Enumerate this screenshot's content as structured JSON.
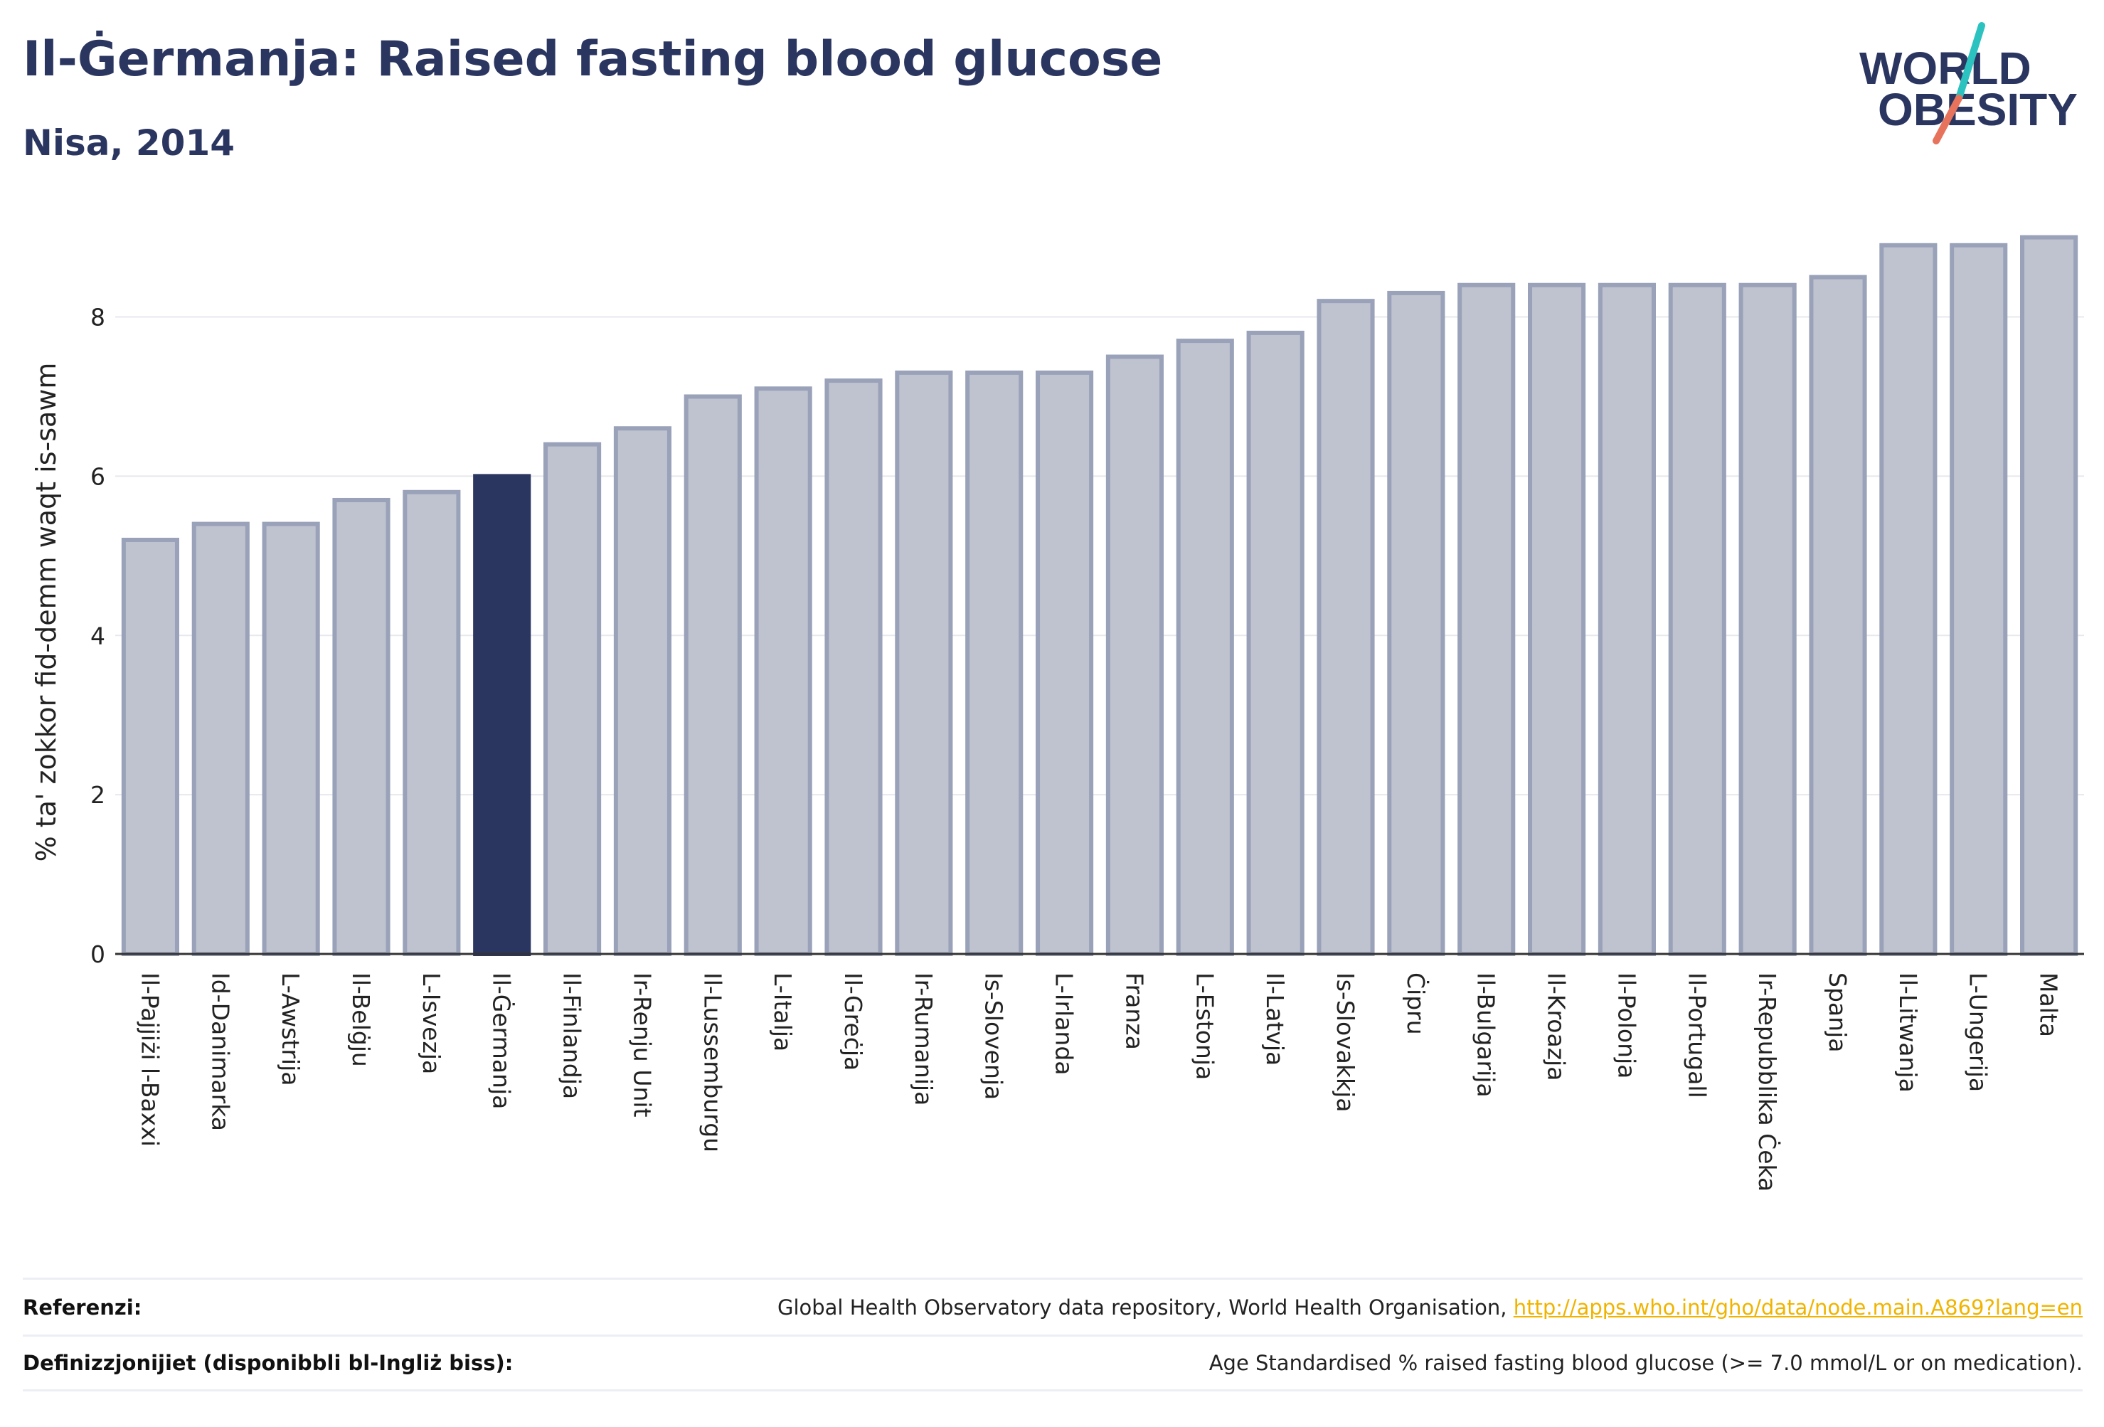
{
  "header": {
    "title": "Il-Ġermanja: Raised fasting blood glucose",
    "subtitle": "Nisa, 2014"
  },
  "logo": {
    "line1": "WORLD",
    "line2": "OBESITY"
  },
  "colors": {
    "highlight": "#2b3660",
    "bar_fill": "#bfc3d0",
    "bar_stroke": "#9aa2b9",
    "accent_teal": "#2cc2bf",
    "accent_coral": "#e8735c"
  },
  "chart_data": {
    "type": "bar",
    "title": "Il-Ġermanja: Raised fasting blood glucose",
    "subtitle": "Nisa, 2014",
    "xlabel": "",
    "ylabel": "% ta' zokkor fid-demm waqt is-sawm",
    "ylim": [
      0,
      9.3
    ],
    "yticks": [
      0,
      2,
      4,
      6,
      8
    ],
    "grid": true,
    "highlight": "Il-Ġermanja",
    "categories": [
      "Il-Pajjiżi l-Baxxi",
      "Id-Danimarka",
      "L-Awstrija",
      "Il-Belġju",
      "L-Isvezja",
      "Il-Ġermanja",
      "Il-Finlandja",
      "Ir-Renju Unit",
      "Il-Lussemburgu",
      "L-Italja",
      "Il-Greċja",
      "Ir-Rumanija",
      "Is-Slovenja",
      "L-Irlanda",
      "Franza",
      "L-Estonja",
      "Il-Latvja",
      "Is-Slovakkja",
      "Ċipru",
      "Il-Bulgarija",
      "Il-Kroazja",
      "Il-Polonja",
      "Il-Portugall",
      "Ir-Repubblika Ċeka",
      "Spanja",
      "Il-Litwanja",
      "L-Ungerija",
      "Malta"
    ],
    "values": [
      5.2,
      5.4,
      5.4,
      5.7,
      5.8,
      6.0,
      6.4,
      6.6,
      7.0,
      7.1,
      7.2,
      7.3,
      7.3,
      7.3,
      7.5,
      7.7,
      7.8,
      8.2,
      8.3,
      8.4,
      8.4,
      8.4,
      8.4,
      8.4,
      8.5,
      8.9,
      8.9,
      9.0
    ]
  },
  "footer": {
    "ref_label": "Referenzi:",
    "ref_text": "Global Health Observatory data repository, World Health Organisation, ",
    "ref_link": "http://apps.who.int/gho/data/node.main.A869?lang=en",
    "def_label": "Definizzjonijiet (disponibbli bl-Ingliż biss):",
    "def_text": "Age Standardised % raised fasting blood glucose (>= 7.0 mmol/L or on medication)."
  }
}
